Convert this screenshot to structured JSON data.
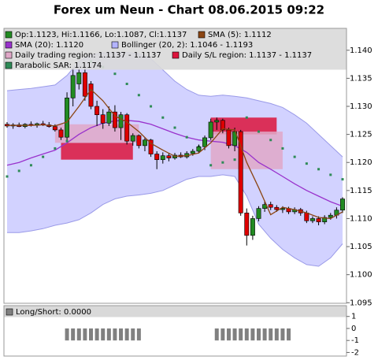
{
  "chart_data": [
    {
      "type": "candlestick",
      "title": "Forex um Neun - Chart 08.06.2015 09:22",
      "ohlc_label": "Op:1.1123, Hi:1.1166, Lo:1.1087, Cl:1.1137",
      "up_color": "#228b22",
      "down_color": "#dd0000",
      "open": [
        1.1268,
        1.1265,
        1.1267,
        1.1264,
        1.1268,
        1.1266,
        1.1269,
        1.1267,
        1.1264,
        1.1258,
        1.1245,
        1.1315,
        1.134,
        1.136,
        1.134,
        1.13,
        1.1285,
        1.127,
        1.129,
        1.1262,
        1.1285,
        1.1238,
        1.1248,
        1.123,
        1.124,
        1.1215,
        1.1205,
        1.1212,
        1.1208,
        1.1213,
        1.121,
        1.1216,
        1.122,
        1.1228,
        1.1244,
        1.1272,
        1.1275,
        1.1258,
        1.123,
        1.1255,
        1.111,
        1.107,
        1.11,
        1.1118,
        1.1125,
        1.112,
        1.1116,
        1.1118,
        1.1112,
        1.1116,
        1.111,
        1.1096,
        1.11,
        1.1094,
        1.1102,
        1.1106,
        1.1115
      ],
      "high": [
        1.1272,
        1.127,
        1.1271,
        1.127,
        1.1273,
        1.1271,
        1.1274,
        1.1272,
        1.1268,
        1.1262,
        1.1325,
        1.1368,
        1.1366,
        1.1368,
        1.1345,
        1.131,
        1.1295,
        1.13,
        1.1302,
        1.129,
        1.1288,
        1.1252,
        1.125,
        1.1245,
        1.1242,
        1.122,
        1.1218,
        1.1216,
        1.1217,
        1.1218,
        1.122,
        1.1224,
        1.1232,
        1.1248,
        1.1278,
        1.128,
        1.1278,
        1.1262,
        1.1262,
        1.1258,
        1.1118,
        1.1105,
        1.1122,
        1.1132,
        1.113,
        1.1124,
        1.1122,
        1.1121,
        1.112,
        1.1119,
        1.1114,
        1.1104,
        1.1104,
        1.1106,
        1.111,
        1.112,
        1.1138
      ],
      "low": [
        1.1262,
        1.126,
        1.1263,
        1.1261,
        1.1264,
        1.1262,
        1.1265,
        1.1262,
        1.1255,
        1.124,
        1.124,
        1.13,
        1.133,
        1.131,
        1.1295,
        1.1265,
        1.126,
        1.1265,
        1.1255,
        1.124,
        1.1232,
        1.123,
        1.1225,
        1.122,
        1.121,
        1.1188,
        1.1198,
        1.1202,
        1.1205,
        1.1208,
        1.1207,
        1.1212,
        1.1216,
        1.1222,
        1.124,
        1.1258,
        1.1252,
        1.1225,
        1.122,
        1.1105,
        1.1052,
        1.1062,
        1.1095,
        1.1112,
        1.1115,
        1.1112,
        1.111,
        1.1108,
        1.1108,
        1.1105,
        1.1092,
        1.1092,
        1.1088,
        1.109,
        1.1098,
        1.11,
        1.111
      ],
      "close": [
        1.1265,
        1.1267,
        1.1264,
        1.1268,
        1.1266,
        1.1269,
        1.1267,
        1.1264,
        1.1258,
        1.1245,
        1.1315,
        1.1355,
        1.136,
        1.1318,
        1.13,
        1.1285,
        1.127,
        1.129,
        1.1262,
        1.1285,
        1.1238,
        1.1248,
        1.123,
        1.124,
        1.1215,
        1.1205,
        1.1212,
        1.1208,
        1.1213,
        1.121,
        1.1216,
        1.122,
        1.1228,
        1.1244,
        1.1272,
        1.1275,
        1.1258,
        1.123,
        1.1255,
        1.111,
        1.107,
        1.11,
        1.1118,
        1.1125,
        1.112,
        1.1116,
        1.1118,
        1.1112,
        1.1116,
        1.111,
        1.1096,
        1.11,
        1.1094,
        1.1102,
        1.1106,
        1.1115,
        1.1135
      ],
      "series": [
        {
          "name": "SMA (5): 1.1112",
          "color": "#8b4513",
          "kind": "line",
          "x": [
            0,
            2,
            4,
            6,
            8,
            10,
            12,
            14,
            16,
            18,
            20,
            22,
            24,
            26,
            28,
            30,
            32,
            34,
            36,
            38,
            40,
            42,
            44,
            46,
            48,
            50,
            52,
            54,
            56
          ],
          "values": [
            1.1266,
            1.1266,
            1.1266,
            1.1267,
            1.1265,
            1.1272,
            1.13,
            1.133,
            1.131,
            1.1283,
            1.1272,
            1.1255,
            1.1234,
            1.1222,
            1.1211,
            1.1212,
            1.1217,
            1.1235,
            1.126,
            1.1258,
            1.12,
            1.1155,
            1.1107,
            1.112,
            1.1116,
            1.111,
            1.1102,
            1.11,
            1.1112
          ]
        },
        {
          "name": "SMA (20): 1.1120",
          "color": "#9932cc",
          "kind": "line",
          "x": [
            0,
            2,
            4,
            6,
            8,
            10,
            12,
            14,
            16,
            18,
            20,
            22,
            24,
            26,
            28,
            30,
            32,
            34,
            36,
            38,
            40,
            42,
            44,
            46,
            48,
            50,
            52,
            54,
            56
          ],
          "values": [
            1.1195,
            1.12,
            1.1208,
            1.1215,
            1.1222,
            1.1235,
            1.125,
            1.1262,
            1.127,
            1.1274,
            1.1275,
            1.1273,
            1.1268,
            1.126,
            1.1252,
            1.1245,
            1.124,
            1.1238,
            1.1236,
            1.123,
            1.1218,
            1.12,
            1.1188,
            1.1175,
            1.1162,
            1.115,
            1.114,
            1.113,
            1.1122
          ]
        },
        {
          "name": "Bollinger (20, 2): 1.1046 - 1.1193",
          "color": "#b4b4ff",
          "kind": "band",
          "x": [
            0,
            2,
            4,
            6,
            8,
            10,
            12,
            14,
            16,
            18,
            20,
            22,
            24,
            26,
            28,
            30,
            32,
            34,
            36,
            38,
            40,
            42,
            44,
            46,
            48,
            50,
            52,
            54,
            56
          ],
          "upper": [
            1.1328,
            1.133,
            1.1332,
            1.1335,
            1.1338,
            1.1355,
            1.138,
            1.1392,
            1.1395,
            1.1396,
            1.1396,
            1.1394,
            1.1385,
            1.1365,
            1.1345,
            1.133,
            1.132,
            1.1318,
            1.132,
            1.1318,
            1.1315,
            1.131,
            1.1305,
            1.1298,
            1.1285,
            1.127,
            1.125,
            1.123,
            1.121
          ],
          "lower": [
            1.1075,
            1.1075,
            1.1078,
            1.1082,
            1.1088,
            1.1092,
            1.1098,
            1.111,
            1.1125,
            1.1135,
            1.114,
            1.1142,
            1.1145,
            1.115,
            1.116,
            1.117,
            1.1175,
            1.1175,
            1.1178,
            1.1175,
            1.114,
            1.109,
            1.1065,
            1.1045,
            1.103,
            1.1018,
            1.1015,
            1.103,
            1.1055
          ]
        },
        {
          "name": "Daily trading region: 1.1137 - 1.1137",
          "color": "#e0a8c8",
          "kind": "region",
          "regions": [
            {
              "x": [
                8,
                22
              ],
              "y": [
                1.1235,
                1.1268
              ]
            },
            {
              "x": [
                34,
                46
              ],
              "y": [
                1.1188,
                1.1255
              ]
            }
          ]
        },
        {
          "name": "Daily S/L region: 1.1137 - 1.1137",
          "color": "#dc143c",
          "kind": "region",
          "regions": [
            {
              "x": [
                9,
                21
              ],
              "y": [
                1.1205,
                1.1235
              ]
            },
            {
              "x": [
                34,
                45
              ],
              "y": [
                1.125,
                1.128
              ]
            }
          ]
        },
        {
          "name": "Parabolic SAR: 1.1174",
          "color": "#2e8b57",
          "kind": "dots",
          "x": [
            0,
            2,
            4,
            6,
            8,
            10,
            12,
            14,
            16,
            18,
            20,
            22,
            24,
            26,
            28,
            30,
            32,
            34,
            36,
            38,
            40,
            42,
            44,
            46,
            48,
            50,
            52,
            54,
            56
          ],
          "values": [
            1.1175,
            1.1185,
            1.1195,
            1.121,
            1.1225,
            1.1238,
            1.1388,
            1.138,
            1.137,
            1.1358,
            1.134,
            1.132,
            1.13,
            1.128,
            1.1262,
            1.1245,
            1.1228,
            1.1195,
            1.12,
            1.1205,
            1.128,
            1.1255,
            1.124,
            1.1225,
            1.121,
            1.1198,
            1.1188,
            1.1178,
            1.117
          ]
        }
      ],
      "ylim": [
        1.0949,
        1.1439
      ],
      "yticks": [
        1.095,
        {
          "value": 1.1,
          "label": "1.100"
        },
        1.105,
        {
          "value": 1.11,
          "label": "1.110"
        },
        1.115,
        {
          "value": 1.12,
          "label": "1.120"
        },
        1.125,
        {
          "value": 1.13,
          "label": "1.130"
        },
        1.135,
        {
          "value": 1.14,
          "label": "1.140"
        }
      ]
    },
    {
      "type": "bar",
      "legend": "Long/Short: 0.0000",
      "color": "#808080",
      "values": [
        0,
        0,
        0,
        0,
        0,
        0,
        0,
        0,
        0,
        0,
        -1,
        -1,
        -1,
        -1,
        -1,
        -1,
        -1,
        -1,
        -1,
        -1,
        -1,
        -1,
        -1,
        0,
        0,
        0,
        0,
        0,
        0,
        0,
        0,
        0,
        0,
        0,
        0,
        -1,
        -1,
        -1,
        -1,
        -1,
        -1,
        -1,
        -1,
        -1,
        -1,
        -1,
        -1,
        -1,
        0,
        0,
        0,
        0,
        0,
        0,
        0,
        0,
        0
      ],
      "ylim": [
        -2.3,
        1.9
      ],
      "yticks": [
        1,
        0,
        -1,
        -2
      ]
    }
  ]
}
